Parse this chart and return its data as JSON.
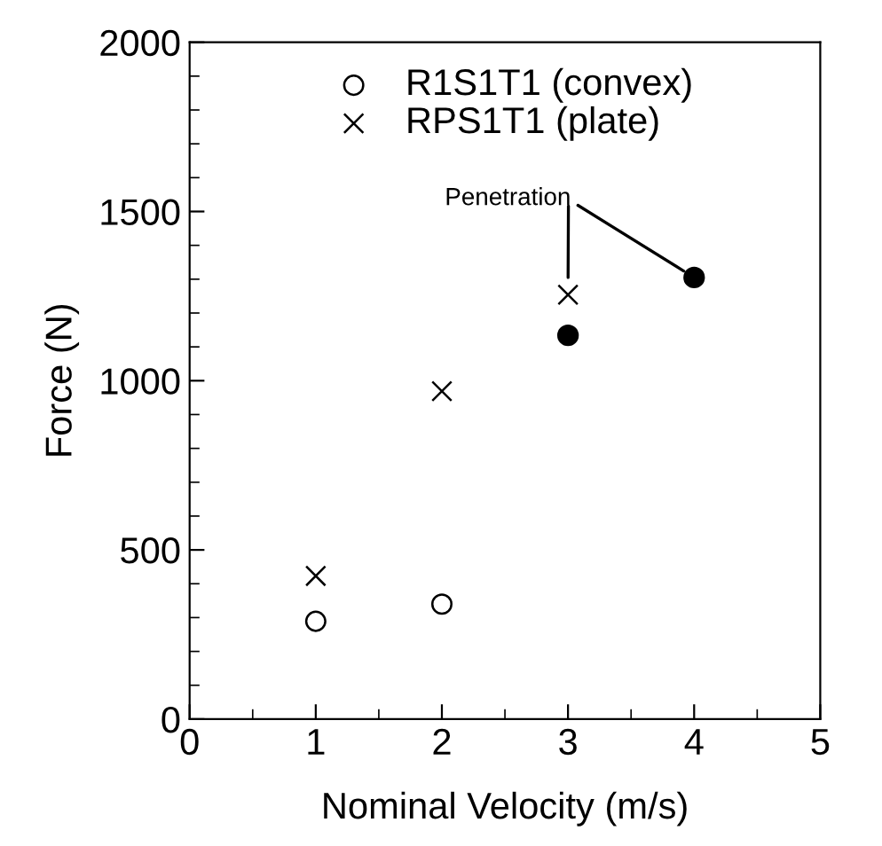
{
  "chart_data": {
    "type": "scatter",
    "xlabel": "Nominal Velocity (m/s)",
    "ylabel": "Force (N)",
    "xlim": [
      0,
      5
    ],
    "xticks": [
      0,
      1,
      2,
      3,
      4,
      5
    ],
    "ylim": [
      0,
      2000
    ],
    "yticks": [
      0,
      500,
      1000,
      1500,
      2000
    ],
    "grid": false,
    "legend": "top",
    "series": [
      {
        "name": "R1S1T1 (convex)",
        "color": "#000000",
        "marker": "circle",
        "x": [
          1,
          2
        ],
        "values": [
          289,
          340
        ]
      },
      {
        "name": "RPS1T1 (plate)",
        "color": "#000000",
        "marker": "cross",
        "x": [
          1,
          2,
          3
        ],
        "values": [
          423,
          969,
          1254
        ]
      },
      {
        "color": "#000000",
        "marker": "filled_circle",
        "x": [
          3,
          4
        ],
        "values": [
          1134,
          1305
        ]
      }
    ],
    "annotations": [
      {
        "text": "Penetration",
        "x": 4,
        "y": 1305
      }
    ]
  }
}
